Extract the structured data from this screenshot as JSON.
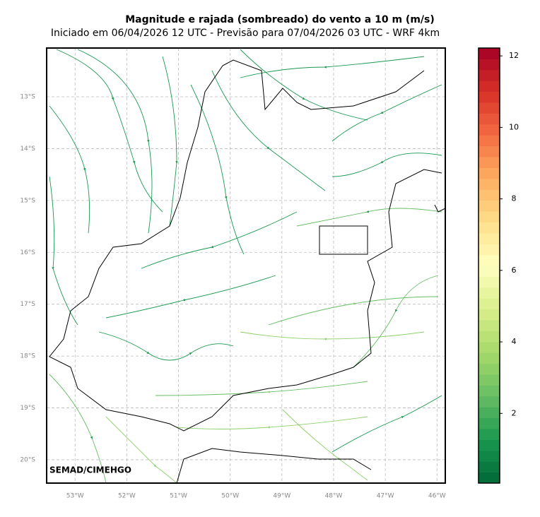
{
  "title": "Magnitude e rajada (sombreado) do vento a 10 m (m/s)",
  "subtitle": "Iniciado em 06/04/2026 12 UTC - Previsão para 07/04/2026 03 UTC - WRF 4km",
  "map": {
    "xlim": [
      -53.55,
      -45.84
    ],
    "ylim": [
      -20.45,
      -12.06
    ],
    "grid": true,
    "xticks": [
      {
        "value": -53,
        "label": "53°W"
      },
      {
        "value": -52,
        "label": "52°W"
      },
      {
        "value": -51,
        "label": "51°W"
      },
      {
        "value": -50,
        "label": "50°W"
      },
      {
        "value": -49,
        "label": "49°W"
      },
      {
        "value": -48,
        "label": "48°W"
      },
      {
        "value": -47,
        "label": "47°W"
      },
      {
        "value": -46,
        "label": "46°W"
      }
    ],
    "yticks": [
      {
        "value": -13,
        "label": "13°S"
      },
      {
        "value": -14,
        "label": "14°S"
      },
      {
        "value": -15,
        "label": "15°S"
      },
      {
        "value": -16,
        "label": "16°S"
      },
      {
        "value": -17,
        "label": "17°S"
      },
      {
        "value": -18,
        "label": "18°S"
      },
      {
        "value": -19,
        "label": "19°S"
      },
      {
        "value": -20,
        "label": "20°S"
      }
    ]
  },
  "colorbar": {
    "lim": [
      0.05,
      12.22
    ],
    "ticks": [
      2,
      4,
      6,
      8,
      10,
      12
    ],
    "colors": [
      "#006837",
      "#1a9850",
      "#66bd63",
      "#a6d96a",
      "#d9ef8b",
      "#ffffbf",
      "#fee08b",
      "#fdae61",
      "#f46d43",
      "#d73027",
      "#a50026"
    ]
  },
  "credit": "SEMAD/CIMEHGO"
}
